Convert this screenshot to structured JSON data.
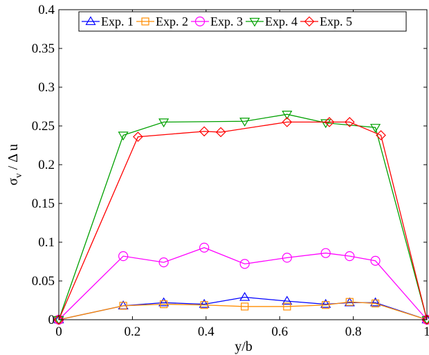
{
  "chart_data": {
    "type": "line",
    "title": "",
    "xlabel": "y/b",
    "ylabel_main": "σ",
    "ylabel_sub": "v",
    "ylabel_rest": " / Δ u",
    "xlim": [
      0,
      1
    ],
    "ylim": [
      0,
      0.4
    ],
    "xticks": [
      0,
      0.2,
      0.4,
      0.6,
      0.8,
      1
    ],
    "xtick_labels": [
      "0",
      "0.2",
      "0.4",
      "0.6",
      "0.8",
      "1"
    ],
    "yticks": [
      0,
      0.05,
      0.1,
      0.15,
      0.2,
      0.25,
      0.3,
      0.35,
      0.4
    ],
    "ytick_labels": [
      "0",
      "0.05",
      "0.1",
      "0.15",
      "0.2",
      "0.25",
      "0.3",
      "0.35",
      "0.4"
    ],
    "grid": false,
    "legend_position": "top",
    "series": [
      {
        "name": "Exp. 1",
        "color": "#0000ff",
        "marker": "triangle-up",
        "x": [
          0,
          0.175,
          0.285,
          0.395,
          0.505,
          0.62,
          0.725,
          0.79,
          0.86,
          1
        ],
        "y": [
          0,
          0.018,
          0.022,
          0.02,
          0.029,
          0.024,
          0.02,
          0.022,
          0.022,
          0
        ]
      },
      {
        "name": "Exp. 2",
        "color": "#ff8c00",
        "marker": "square",
        "x": [
          0,
          0.175,
          0.285,
          0.395,
          0.505,
          0.62,
          0.725,
          0.79,
          0.86,
          1
        ],
        "y": [
          0,
          0.018,
          0.02,
          0.019,
          0.017,
          0.017,
          0.019,
          0.023,
          0.021,
          0
        ]
      },
      {
        "name": "Exp. 3",
        "color": "#ff00ff",
        "marker": "circle",
        "x": [
          0,
          0.175,
          0.285,
          0.395,
          0.505,
          0.62,
          0.725,
          0.79,
          0.86,
          1
        ],
        "y": [
          0,
          0.082,
          0.074,
          0.093,
          0.072,
          0.08,
          0.086,
          0.082,
          0.076,
          0
        ]
      },
      {
        "name": "Exp. 4",
        "color": "#00a000",
        "marker": "triangle-down",
        "x": [
          0,
          0.175,
          0.285,
          0.505,
          0.62,
          0.725,
          0.86,
          1
        ],
        "y": [
          0,
          0.238,
          0.255,
          0.256,
          0.265,
          0.254,
          0.248,
          0
        ]
      },
      {
        "name": "Exp. 5",
        "color": "#ff0000",
        "marker": "diamond",
        "x": [
          0,
          0.215,
          0.395,
          0.44,
          0.62,
          0.735,
          0.79,
          0.875,
          1
        ],
        "y": [
          0,
          0.236,
          0.243,
          0.242,
          0.255,
          0.255,
          0.255,
          0.238,
          0
        ]
      }
    ]
  }
}
